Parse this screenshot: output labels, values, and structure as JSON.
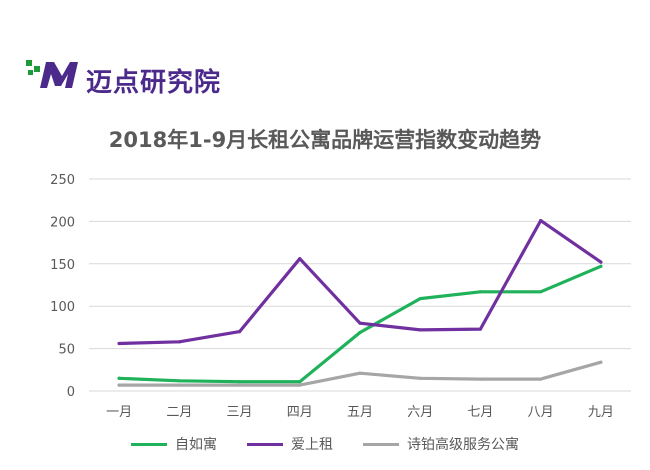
{
  "brand": {
    "logo_text": "迈点研究院",
    "colors": {
      "purple": "#4b2a8c",
      "green": "#1f9a3b"
    }
  },
  "chart_data": {
    "type": "line",
    "title": "2018年1-9月长租公寓品牌运营指数变动趋势",
    "xlabel": "",
    "ylabel": "",
    "categories": [
      "一月",
      "二月",
      "三月",
      "四月",
      "五月",
      "六月",
      "七月",
      "八月",
      "九月"
    ],
    "ylim": [
      0,
      250
    ],
    "yticks": [
      0,
      50,
      100,
      150,
      200,
      250
    ],
    "grid": true,
    "legend_position": "bottom",
    "series": [
      {
        "name": "自如寓",
        "color": "#1fb25a",
        "values": [
          15,
          12,
          11,
          11,
          69,
          109,
          117,
          117,
          147
        ]
      },
      {
        "name": "爱上租",
        "color": "#7030a0",
        "values": [
          56,
          58,
          70,
          156,
          80,
          72,
          73,
          201,
          152
        ]
      },
      {
        "name": "诗铂高级服务公寓",
        "color": "#a6a6a6",
        "values": [
          7,
          7,
          7,
          7,
          21,
          15,
          14,
          14,
          34
        ]
      }
    ]
  }
}
